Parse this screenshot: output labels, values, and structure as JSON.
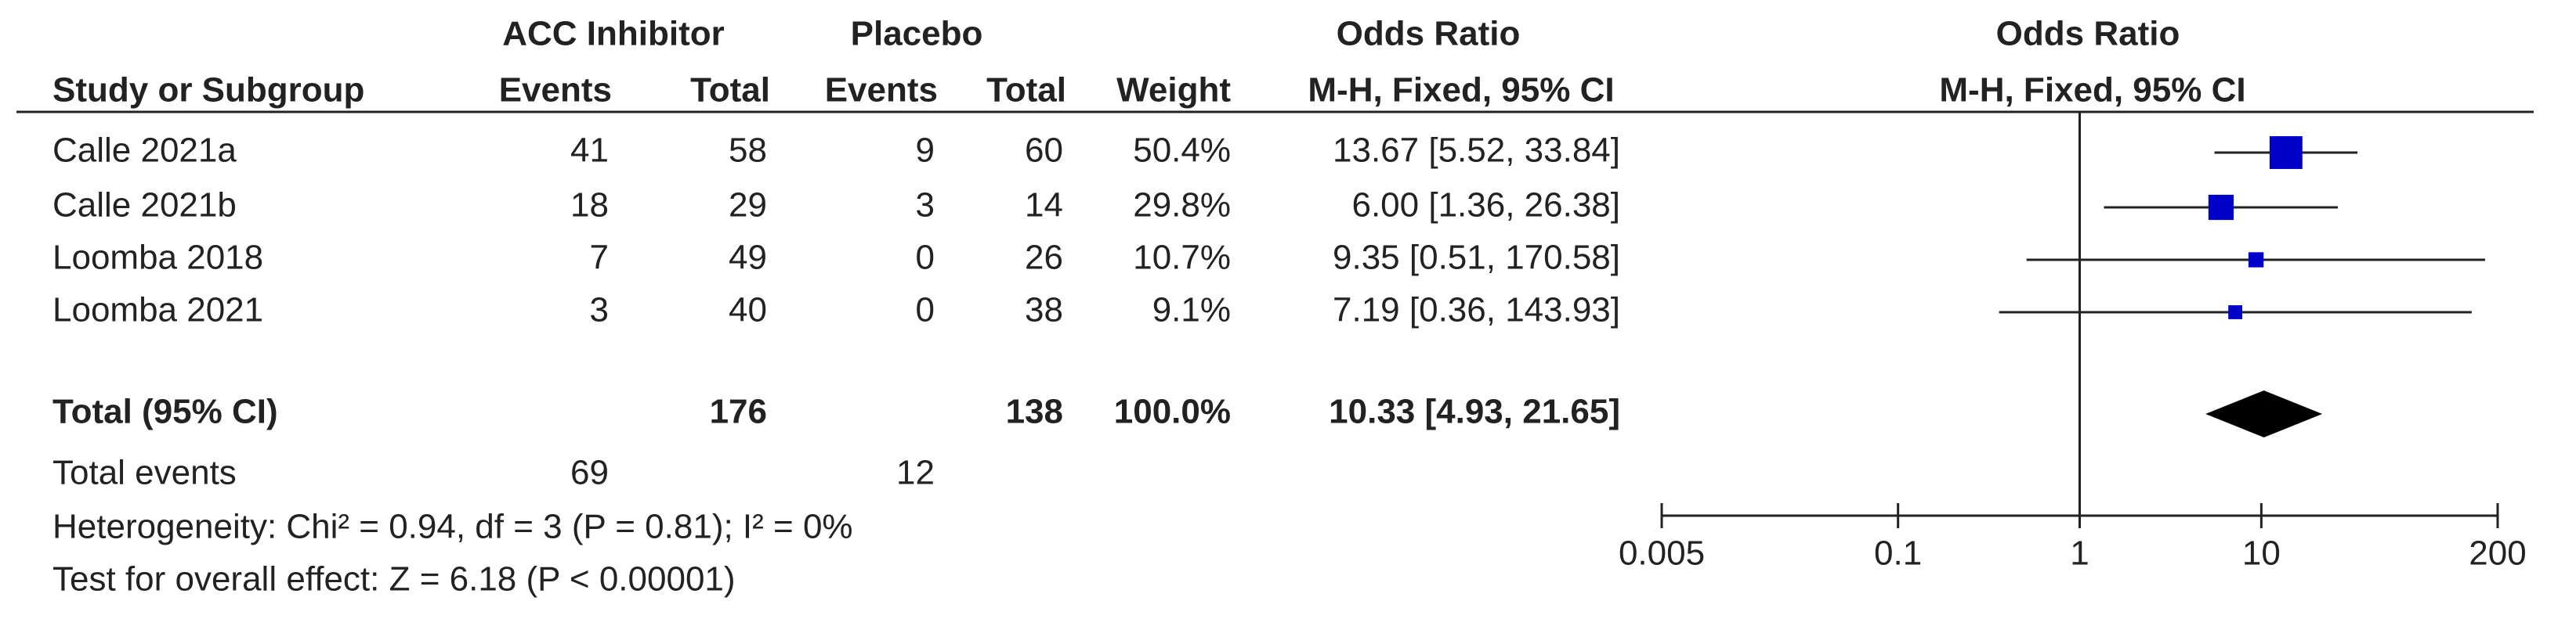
{
  "chart_data": {
    "type": "forest",
    "group_headers": [
      "ACC Inhibitor",
      "Placebo",
      "Odds Ratio"
    ],
    "columns": [
      "Study or Subgroup",
      "Events",
      "Total",
      "Events",
      "Total",
      "Weight",
      "M-H, Fixed, 95% CI"
    ],
    "plot_title": "Odds Ratio",
    "plot_subtitle": "M-H, Fixed, 95% CI",
    "studies": [
      {
        "name": "Calle 2021a",
        "exp_events": 41,
        "exp_total": 58,
        "ctl_events": 9,
        "ctl_total": 60,
        "weight": 50.4,
        "weight_label": "50.4%",
        "or": 13.67,
        "ci_low": 5.52,
        "ci_high": 33.84,
        "or_label": "13.67 [5.52, 33.84]"
      },
      {
        "name": "Calle 2021b",
        "exp_events": 18,
        "exp_total": 29,
        "ctl_events": 3,
        "ctl_total": 14,
        "weight": 29.8,
        "weight_label": "29.8%",
        "or": 6.0,
        "ci_low": 1.36,
        "ci_high": 26.38,
        "or_label": "6.00 [1.36, 26.38]"
      },
      {
        "name": "Loomba 2018",
        "exp_events": 7,
        "exp_total": 49,
        "ctl_events": 0,
        "ctl_total": 26,
        "weight": 10.7,
        "weight_label": "10.7%",
        "or": 9.35,
        "ci_low": 0.51,
        "ci_high": 170.58,
        "or_label": "9.35 [0.51, 170.58]"
      },
      {
        "name": "Loomba 2021",
        "exp_events": 3,
        "exp_total": 40,
        "ctl_events": 0,
        "ctl_total": 38,
        "weight": 9.1,
        "weight_label": "9.1%",
        "or": 7.19,
        "ci_low": 0.36,
        "ci_high": 143.93,
        "or_label": "7.19 [0.36, 143.93]"
      }
    ],
    "total": {
      "name": "Total (95% CI)",
      "exp_total": 176,
      "ctl_total": 138,
      "weight": 100.0,
      "weight_label": "100.0%",
      "or": 10.33,
      "ci_low": 4.93,
      "ci_high": 21.65,
      "or_label": "10.33 [4.93, 21.65]"
    },
    "total_events": {
      "name": "Total events",
      "exp_events": 69,
      "ctl_events": 12
    },
    "heterogeneity": "Heterogeneity: Chi² = 0.94, df = 3 (P = 0.81); I² = 0%",
    "overall_effect": "Test for overall effect: Z = 6.18 (P < 0.00001)",
    "log_x": true,
    "xlim": [
      0.005,
      200
    ],
    "xticks": [
      0.005,
      0.1,
      1,
      10,
      200
    ],
    "reference": 1,
    "color": "#0000c8"
  }
}
